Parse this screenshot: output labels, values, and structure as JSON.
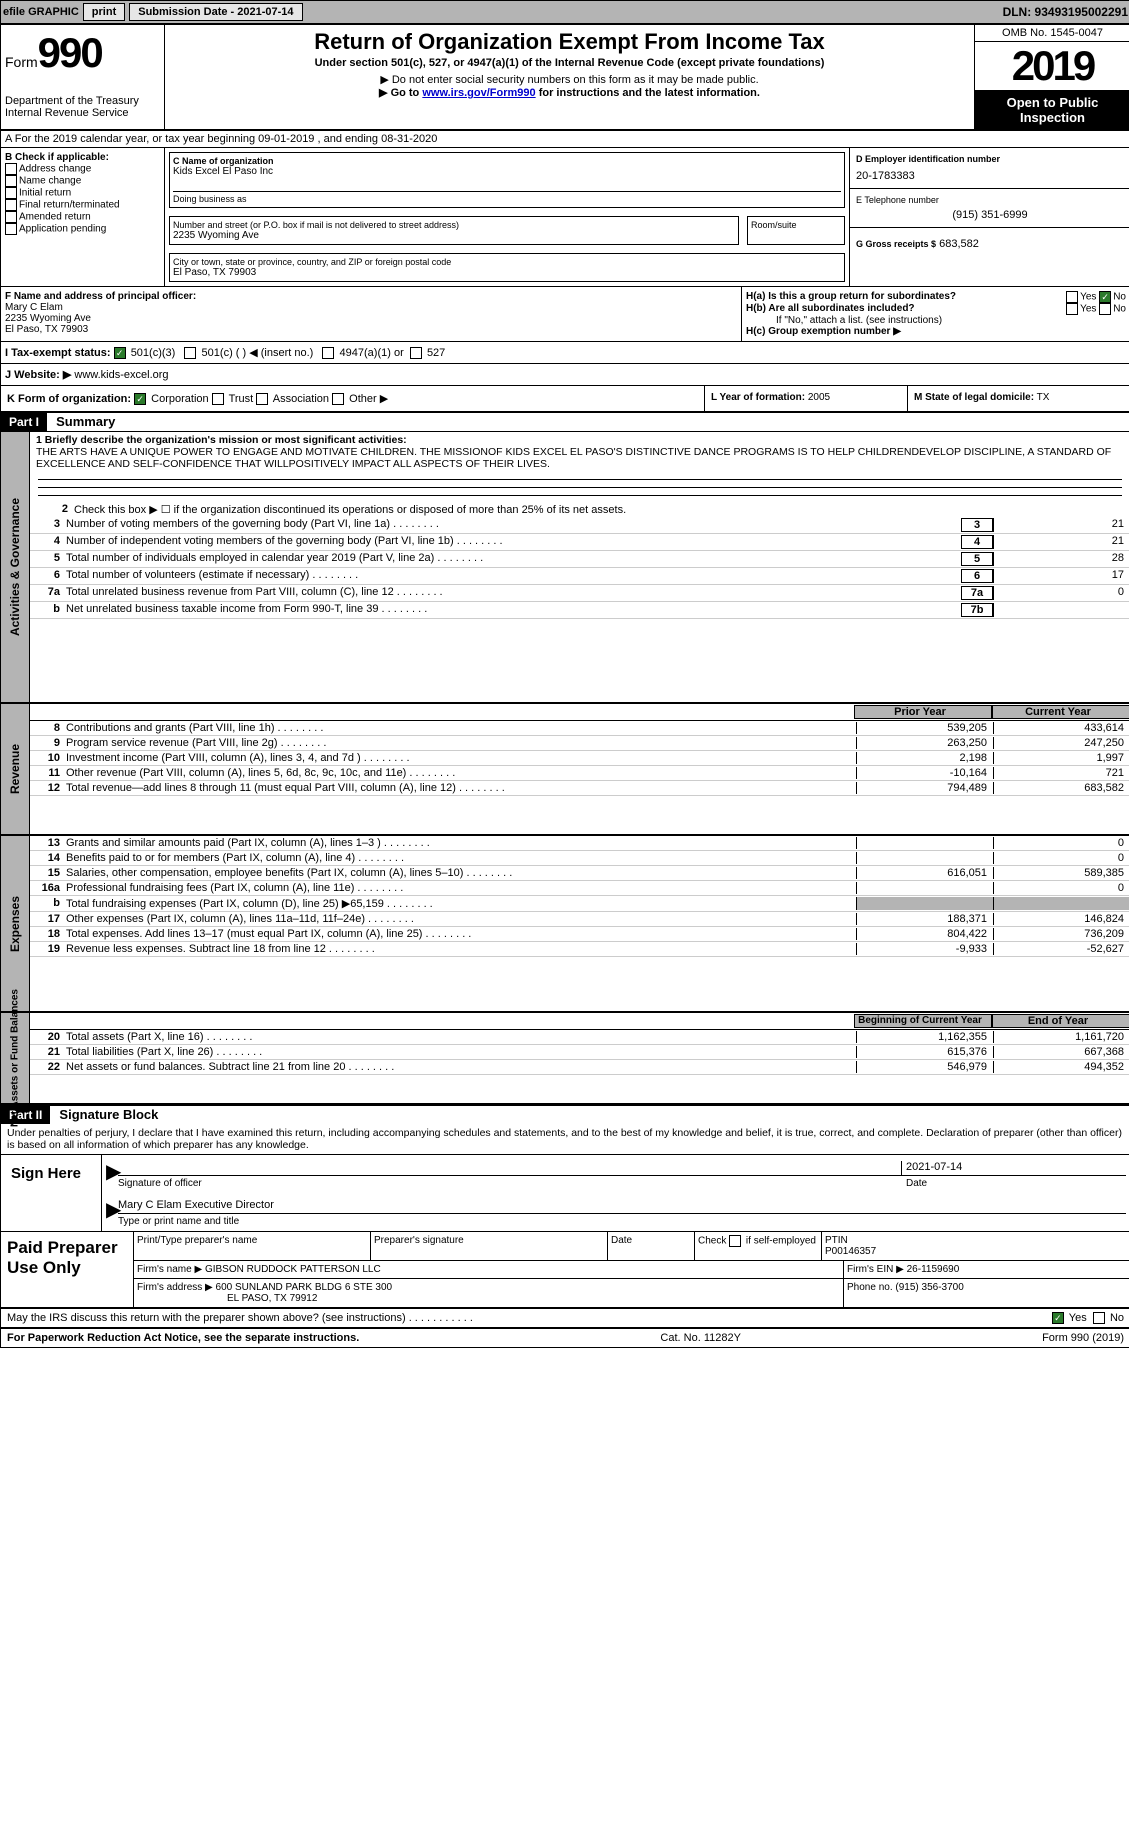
{
  "topbar": {
    "efile": "efile GRAPHIC",
    "print": "print",
    "subdate_label": "Submission Date - 2021-07-14",
    "dln": "DLN: 93493195002291"
  },
  "header": {
    "form_label": "Form",
    "form_num": "990",
    "dept": "Department of the Treasury",
    "irs": "Internal Revenue Service",
    "title": "Return of Organization Exempt From Income Tax",
    "subtitle": "Under section 501(c), 527, or 4947(a)(1) of the Internal Revenue Code (except private foundations)",
    "note1": "▶ Do not enter social security numbers on this form as it may be made public.",
    "note2_pre": "▶ Go to ",
    "note2_link": "www.irs.gov/Form990",
    "note2_post": " for instructions and the latest information.",
    "omb": "OMB No. 1545-0047",
    "year": "2019",
    "open": "Open to Public Inspection"
  },
  "rowA": "A For the 2019 calendar year, or tax year beginning 09-01-2019   , and ending 08-31-2020",
  "sectionB": {
    "label": "B Check if applicable:",
    "items": [
      "Address change",
      "Name change",
      "Initial return",
      "Final return/terminated",
      "Amended return",
      "Application pending"
    ]
  },
  "sectionC": {
    "name_label": "C Name of organization",
    "name": "Kids Excel El Paso Inc",
    "dba_label": "Doing business as",
    "addr_label": "Number and street (or P.O. box if mail is not delivered to street address)",
    "room_label": "Room/suite",
    "addr": "2235 Wyoming Ave",
    "city_label": "City or town, state or province, country, and ZIP or foreign postal code",
    "city": "El Paso, TX  79903"
  },
  "sectionD": {
    "label": "D Employer identification number",
    "value": "20-1783383"
  },
  "sectionE": {
    "label": "E Telephone number",
    "value": "(915) 351-6999"
  },
  "sectionG": {
    "label": "G Gross receipts $",
    "value": "683,582"
  },
  "sectionF": {
    "label": "F  Name and address of principal officer:",
    "name": "Mary C Elam",
    "addr1": "2235 Wyoming Ave",
    "addr2": "El Paso, TX  79903"
  },
  "sectionH": {
    "a": "H(a)  Is this a group return for subordinates?",
    "b": "H(b)  Are all subordinates included?",
    "note": "If \"No,\" attach a list. (see instructions)",
    "c": "H(c)  Group exemption number ▶",
    "yes": "Yes",
    "no": "No"
  },
  "sectionI": {
    "label": "I  Tax-exempt status:",
    "o1": "501(c)(3)",
    "o2": "501(c) (  ) ◀ (insert no.)",
    "o3": "4947(a)(1) or",
    "o4": "527"
  },
  "sectionJ": {
    "label": "J  Website: ▶",
    "value": "www.kids-excel.org"
  },
  "sectionK": {
    "label": "K Form of organization:",
    "o1": "Corporation",
    "o2": "Trust",
    "o3": "Association",
    "o4": "Other ▶"
  },
  "sectionL": {
    "label": "L Year of formation:",
    "value": "2005"
  },
  "sectionM": {
    "label": "M State of legal domicile:",
    "value": "TX"
  },
  "parts": {
    "p1": "Part I",
    "p1t": "Summary",
    "p2": "Part II",
    "p2t": "Signature Block"
  },
  "vtabs": {
    "ag": "Activities & Governance",
    "rev": "Revenue",
    "exp": "Expenses",
    "nab": "Net Assets or Fund Balances"
  },
  "summary": {
    "line1_label": "1  Briefly describe the organization's mission or most significant activities:",
    "mission": "THE ARTS HAVE A UNIQUE POWER TO ENGAGE AND MOTIVATE CHILDREN. THE MISSIONOF KIDS EXCEL EL PASO'S DISTINCTIVE DANCE PROGRAMS IS TO HELP CHILDRENDEVELOP DISCIPLINE, A STANDARD OF EXCELLENCE AND SELF-CONFIDENCE THAT WILLPOSITIVELY IMPACT ALL ASPECTS OF THEIR LIVES.",
    "line2": "Check this box ▶ ☐  if the organization discontinued its operations or disposed of more than 25% of its net assets.",
    "rows": [
      {
        "n": "3",
        "label": "Number of voting members of the governing body (Part VI, line 1a)",
        "box": "3",
        "val": "21"
      },
      {
        "n": "4",
        "label": "Number of independent voting members of the governing body (Part VI, line 1b)",
        "box": "4",
        "val": "21"
      },
      {
        "n": "5",
        "label": "Total number of individuals employed in calendar year 2019 (Part V, line 2a)",
        "box": "5",
        "val": "28"
      },
      {
        "n": "6",
        "label": "Total number of volunteers (estimate if necessary)",
        "box": "6",
        "val": "17"
      },
      {
        "n": "7a",
        "label": "Total unrelated business revenue from Part VIII, column (C), line 12",
        "box": "7a",
        "val": "0"
      },
      {
        "n": "b",
        "label": "Net unrelated business taxable income from Form 990-T, line 39",
        "box": "7b",
        "val": ""
      }
    ],
    "col_prior": "Prior Year",
    "col_current": "Current Year",
    "rev_rows": [
      {
        "n": "8",
        "label": "Contributions and grants (Part VIII, line 1h)",
        "p": "539,205",
        "c": "433,614"
      },
      {
        "n": "9",
        "label": "Program service revenue (Part VIII, line 2g)",
        "p": "263,250",
        "c": "247,250"
      },
      {
        "n": "10",
        "label": "Investment income (Part VIII, column (A), lines 3, 4, and 7d )",
        "p": "2,198",
        "c": "1,997"
      },
      {
        "n": "11",
        "label": "Other revenue (Part VIII, column (A), lines 5, 6d, 8c, 9c, 10c, and 11e)",
        "p": "-10,164",
        "c": "721"
      },
      {
        "n": "12",
        "label": "Total revenue—add lines 8 through 11 (must equal Part VIII, column (A), line 12)",
        "p": "794,489",
        "c": "683,582"
      }
    ],
    "exp_rows": [
      {
        "n": "13",
        "label": "Grants and similar amounts paid (Part IX, column (A), lines 1–3 )",
        "p": "",
        "c": "0"
      },
      {
        "n": "14",
        "label": "Benefits paid to or for members (Part IX, column (A), line 4)",
        "p": "",
        "c": "0"
      },
      {
        "n": "15",
        "label": "Salaries, other compensation, employee benefits (Part IX, column (A), lines 5–10)",
        "p": "616,051",
        "c": "589,385"
      },
      {
        "n": "16a",
        "label": "Professional fundraising fees (Part IX, column (A), line 11e)",
        "p": "",
        "c": "0"
      },
      {
        "n": "b",
        "label": "Total fundraising expenses (Part IX, column (D), line 25) ▶65,159",
        "p": "shade",
        "c": "shade"
      },
      {
        "n": "17",
        "label": "Other expenses (Part IX, column (A), lines 11a–11d, 11f–24e)",
        "p": "188,371",
        "c": "146,824"
      },
      {
        "n": "18",
        "label": "Total expenses. Add lines 13–17 (must equal Part IX, column (A), line 25)",
        "p": "804,422",
        "c": "736,209"
      },
      {
        "n": "19",
        "label": "Revenue less expenses. Subtract line 18 from line 12",
        "p": "-9,933",
        "c": "-52,627"
      }
    ],
    "col_begin": "Beginning of Current Year",
    "col_end": "End of Year",
    "nab_rows": [
      {
        "n": "20",
        "label": "Total assets (Part X, line 16)",
        "p": "1,162,355",
        "c": "1,161,720"
      },
      {
        "n": "21",
        "label": "Total liabilities (Part X, line 26)",
        "p": "615,376",
        "c": "667,368"
      },
      {
        "n": "22",
        "label": "Net assets or fund balances. Subtract line 21 from line 20",
        "p": "546,979",
        "c": "494,352"
      }
    ]
  },
  "sig": {
    "perjury": "Under penalties of perjury, I declare that I have examined this return, including accompanying schedules and statements, and to the best of my knowledge and belief, it is true, correct, and complete. Declaration of preparer (other than officer) is based on all information of which preparer has any knowledge.",
    "sign_here": "Sign Here",
    "sig_officer": "Signature of officer",
    "date": "Date",
    "date_val": "2021-07-14",
    "name": "Mary C Elam  Executive Director",
    "name_label": "Type or print name and title"
  },
  "prep": {
    "title": "Paid Preparer Use Only",
    "col1": "Print/Type preparer's name",
    "col2": "Preparer's signature",
    "col3": "Date",
    "col4_a": "Check",
    "col4_b": "if self-employed",
    "col5": "PTIN",
    "ptin": "P00146357",
    "firm_label": "Firm's name    ▶",
    "firm": "GIBSON RUDDOCK PATTERSON LLC",
    "ein_label": "Firm's EIN ▶",
    "ein": "26-1159690",
    "addr_label": "Firm's address ▶",
    "addr1": "600 SUNLAND PARK BLDG 6 STE 300",
    "addr2": "EL PASO, TX  79912",
    "phone_label": "Phone no.",
    "phone": "(915) 356-3700"
  },
  "footer": {
    "discuss": "May the IRS discuss this return with the preparer shown above? (see instructions)",
    "yes": "Yes",
    "no": "No",
    "pra": "For Paperwork Reduction Act Notice, see the separate instructions.",
    "cat": "Cat. No. 11282Y",
    "form": "Form 990 (2019)"
  }
}
